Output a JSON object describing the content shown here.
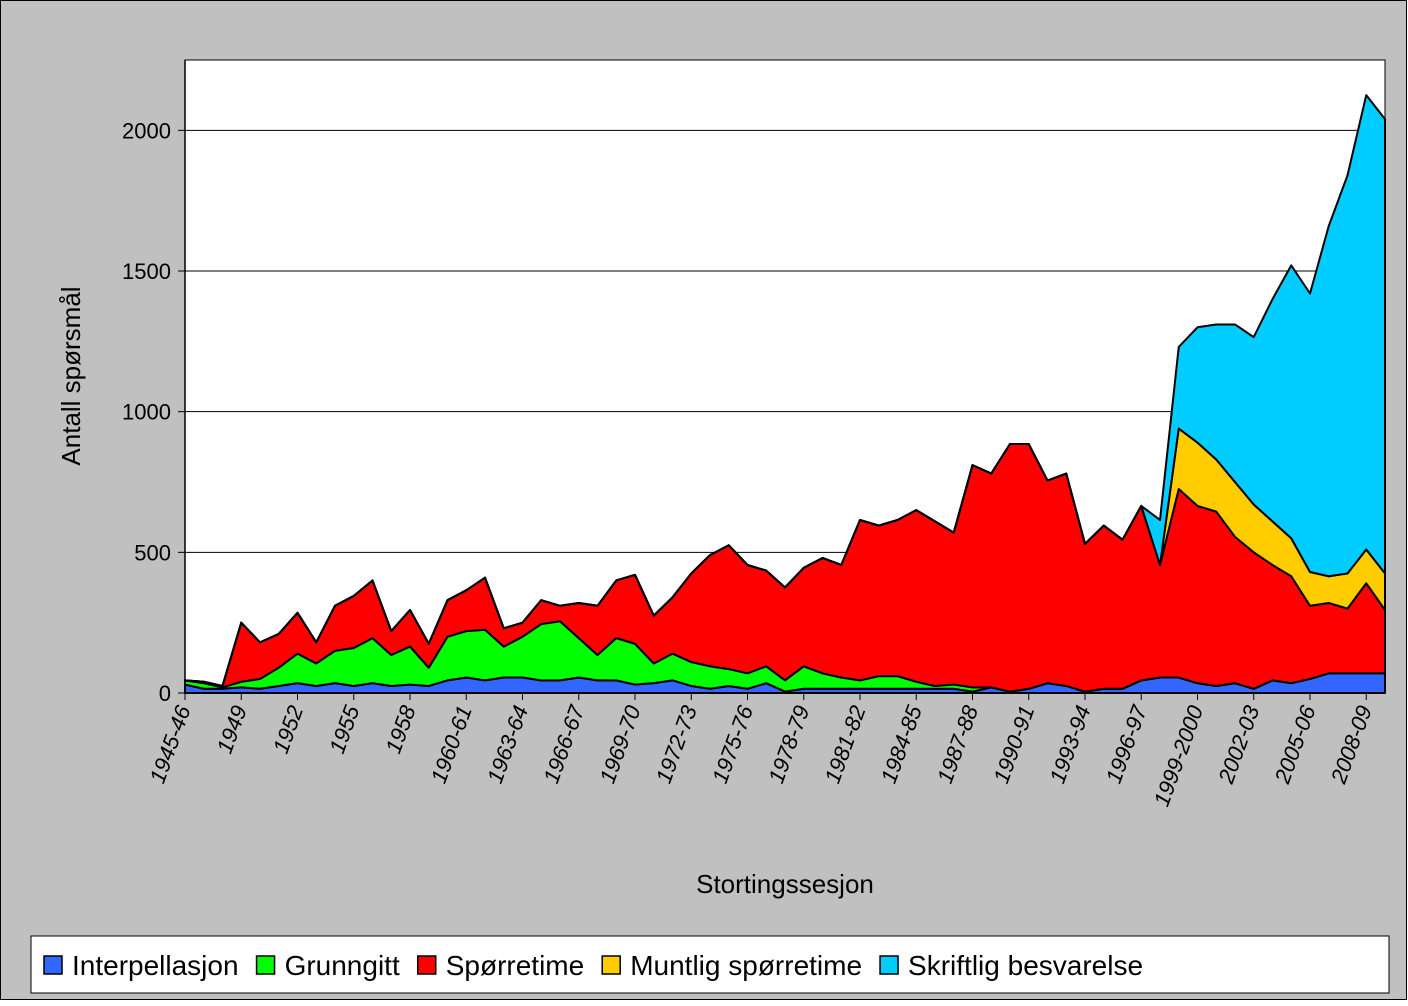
{
  "chart_data": {
    "type": "stacked_area",
    "xlabel": "Stortingssesjon",
    "ylabel": "Antall spørsmål",
    "categories": [
      "1945-46",
      null,
      null,
      "1949",
      null,
      null,
      "1952",
      null,
      null,
      "1955",
      null,
      null,
      "1958",
      null,
      null,
      "1960-61",
      null,
      null,
      "1963-64",
      null,
      null,
      "1966-67",
      null,
      null,
      "1969-70",
      null,
      null,
      "1972-73",
      null,
      null,
      "1975-76",
      null,
      null,
      "1978-79",
      null,
      null,
      "1981-82",
      null,
      null,
      "1984-85",
      null,
      null,
      "1987-88",
      null,
      null,
      "1990-91",
      null,
      null,
      "1993-94",
      null,
      null,
      "1996-97",
      null,
      null,
      "1999-2000",
      null,
      null,
      "2002-03",
      null,
      null,
      "2005-06",
      null,
      null,
      "2008-09",
      null
    ],
    "ylim": [
      0,
      2250
    ],
    "yticks": [
      0,
      500,
      1000,
      1500,
      2000
    ],
    "grid": true,
    "legend": "bottom",
    "series": [
      {
        "name": "Interpellasjon",
        "color": "#3366ff",
        "values": [
          30,
          15,
          15,
          20,
          15,
          25,
          35,
          25,
          35,
          25,
          35,
          25,
          30,
          25,
          45,
          55,
          45,
          55,
          55,
          45,
          45,
          55,
          45,
          45,
          30,
          35,
          45,
          25,
          15,
          25,
          15,
          35,
          5,
          15,
          15,
          15,
          15,
          15,
          15,
          15,
          15,
          15,
          5,
          20,
          5,
          15,
          35,
          25,
          5,
          15,
          15,
          45,
          55,
          55,
          35,
          25,
          35,
          15,
          45,
          35,
          50,
          70,
          70,
          70,
          70
        ]
      },
      {
        "name": "Grunngitt",
        "color": "#00ff00",
        "values": [
          15,
          20,
          5,
          20,
          35,
          65,
          105,
          80,
          115,
          135,
          160,
          110,
          135,
          65,
          155,
          165,
          180,
          110,
          145,
          200,
          210,
          140,
          90,
          150,
          145,
          70,
          95,
          85,
          80,
          60,
          55,
          60,
          40,
          80,
          55,
          40,
          30,
          45,
          45,
          25,
          10,
          15,
          15,
          0,
          0,
          0,
          0,
          0,
          0,
          0,
          0,
          0,
          0,
          0,
          0,
          0,
          0,
          0,
          0,
          0,
          0,
          0,
          0,
          0,
          0
        ]
      },
      {
        "name": "Spørretime",
        "color": "#ff0000",
        "values": [
          0,
          5,
          5,
          210,
          130,
          120,
          145,
          75,
          160,
          185,
          205,
          85,
          130,
          85,
          130,
          145,
          185,
          65,
          50,
          85,
          55,
          125,
          175,
          205,
          245,
          170,
          200,
          315,
          395,
          440,
          385,
          340,
          330,
          350,
          410,
          400,
          570,
          535,
          555,
          610,
          585,
          540,
          790,
          760,
          880,
          870,
          720,
          755,
          525,
          580,
          530,
          620,
          400,
          670,
          630,
          620,
          520,
          485,
          410,
          380,
          260,
          250,
          230,
          320,
          225
        ]
      },
      {
        "name": "Muntlig spørretime",
        "color": "#ffcc00",
        "values": [
          0,
          0,
          0,
          0,
          0,
          0,
          0,
          0,
          0,
          0,
          0,
          0,
          0,
          0,
          0,
          0,
          0,
          0,
          0,
          0,
          0,
          0,
          0,
          0,
          0,
          0,
          0,
          0,
          0,
          0,
          0,
          0,
          0,
          0,
          0,
          0,
          0,
          0,
          0,
          0,
          0,
          0,
          0,
          0,
          0,
          0,
          0,
          0,
          0,
          0,
          0,
          0,
          0,
          215,
          225,
          185,
          195,
          170,
          155,
          135,
          120,
          95,
          125,
          120,
          130
        ]
      },
      {
        "name": "Skriftlig besvarelse",
        "color": "#00ccff",
        "values": [
          0,
          0,
          0,
          0,
          0,
          0,
          0,
          0,
          0,
          0,
          0,
          0,
          0,
          0,
          0,
          0,
          0,
          0,
          0,
          0,
          0,
          0,
          0,
          0,
          0,
          0,
          0,
          0,
          0,
          0,
          0,
          0,
          0,
          0,
          0,
          0,
          0,
          0,
          0,
          0,
          0,
          0,
          0,
          0,
          0,
          0,
          0,
          0,
          0,
          0,
          0,
          0,
          160,
          290,
          410,
          480,
          560,
          595,
          790,
          970,
          990,
          1245,
          1415,
          1615,
          1615
        ]
      }
    ]
  }
}
